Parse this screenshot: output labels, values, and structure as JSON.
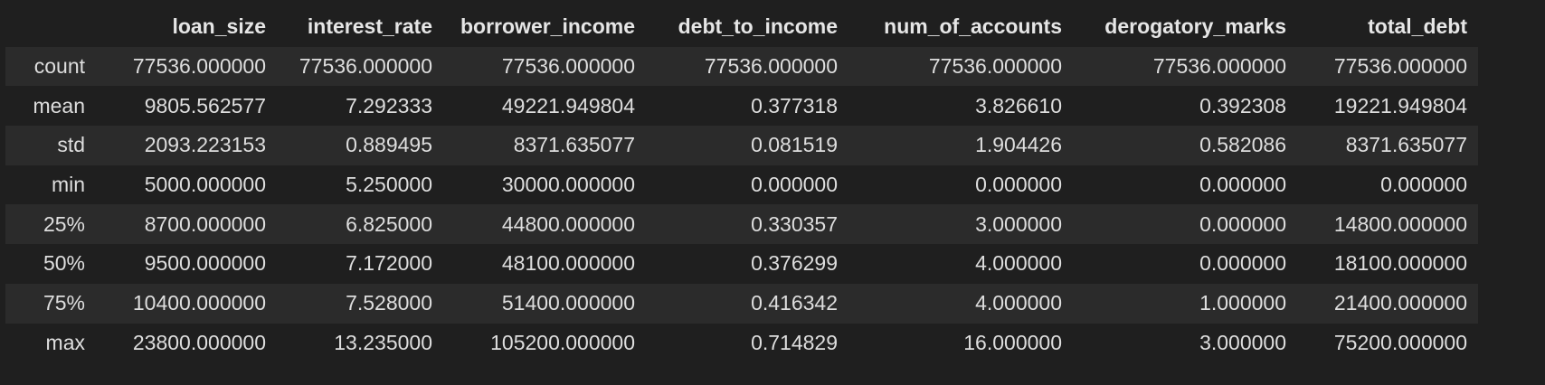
{
  "table": {
    "index_header": "",
    "columns": [
      "loan_size",
      "interest_rate",
      "borrower_income",
      "debt_to_income",
      "num_of_accounts",
      "derogatory_marks",
      "total_debt"
    ],
    "rows": [
      {
        "label": "count",
        "values": [
          "77536.000000",
          "77536.000000",
          "77536.000000",
          "77536.000000",
          "77536.000000",
          "77536.000000",
          "77536.000000"
        ]
      },
      {
        "label": "mean",
        "values": [
          "9805.562577",
          "7.292333",
          "49221.949804",
          "0.377318",
          "3.826610",
          "0.392308",
          "19221.949804"
        ]
      },
      {
        "label": "std",
        "values": [
          "2093.223153",
          "0.889495",
          "8371.635077",
          "0.081519",
          "1.904426",
          "0.582086",
          "8371.635077"
        ]
      },
      {
        "label": "min",
        "values": [
          "5000.000000",
          "5.250000",
          "30000.000000",
          "0.000000",
          "0.000000",
          "0.000000",
          "0.000000"
        ]
      },
      {
        "label": "25%",
        "values": [
          "8700.000000",
          "6.825000",
          "44800.000000",
          "0.330357",
          "3.000000",
          "0.000000",
          "14800.000000"
        ]
      },
      {
        "label": "50%",
        "values": [
          "9500.000000",
          "7.172000",
          "48100.000000",
          "0.376299",
          "4.000000",
          "0.000000",
          "18100.000000"
        ]
      },
      {
        "label": "75%",
        "values": [
          "10400.000000",
          "7.528000",
          "51400.000000",
          "0.416342",
          "4.000000",
          "1.000000",
          "21400.000000"
        ]
      },
      {
        "label": "max",
        "values": [
          "23800.000000",
          "13.235000",
          "105200.000000",
          "0.714829",
          "16.000000",
          "3.000000",
          "75200.000000"
        ]
      }
    ]
  },
  "colors": {
    "background": "#1f1f1f",
    "row_stripe": "#2b2b2b",
    "text": "#dedede"
  }
}
